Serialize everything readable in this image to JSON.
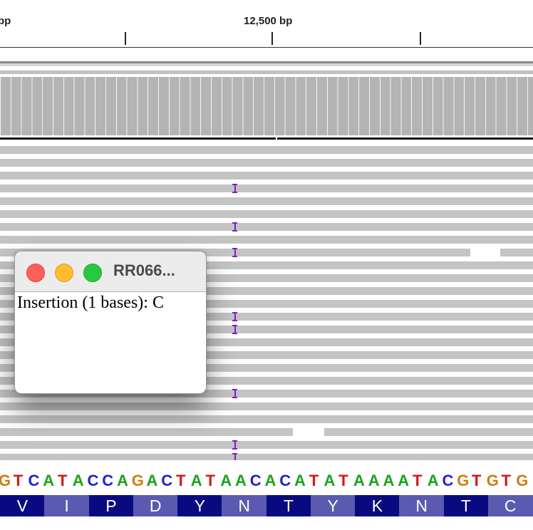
{
  "ruler": {
    "partial_label": "bp",
    "center_label": "12,500 bp"
  },
  "popup": {
    "title": "RR066...",
    "body": "Insertion (1 bases): C",
    "buttons": [
      "close",
      "minimize",
      "zoom"
    ]
  },
  "colors": {
    "insertion": "#7a1fc8",
    "read": "#c4c4c4",
    "base_A": "#1aa31a",
    "base_C": "#1f1fd6",
    "base_G": "#cf7d12",
    "base_T": "#d41818",
    "aa_dark": "#0a0a80",
    "aa_light": "#5a5ab0"
  },
  "sequence": [
    "G",
    "T",
    "C",
    "A",
    "T",
    "A",
    "C",
    "C",
    "A",
    "G",
    "A",
    "C",
    "T",
    "A",
    "T",
    "A",
    "A",
    "C",
    "A",
    "C",
    "A",
    "T",
    "A",
    "T",
    "A",
    "A",
    "A",
    "A",
    "T",
    "A",
    "C",
    "G",
    "T",
    "G",
    "T",
    "G"
  ],
  "translation": [
    "V",
    "I",
    "P",
    "D",
    "Y",
    "N",
    "T",
    "Y",
    "K",
    "N",
    "T",
    "C"
  ]
}
